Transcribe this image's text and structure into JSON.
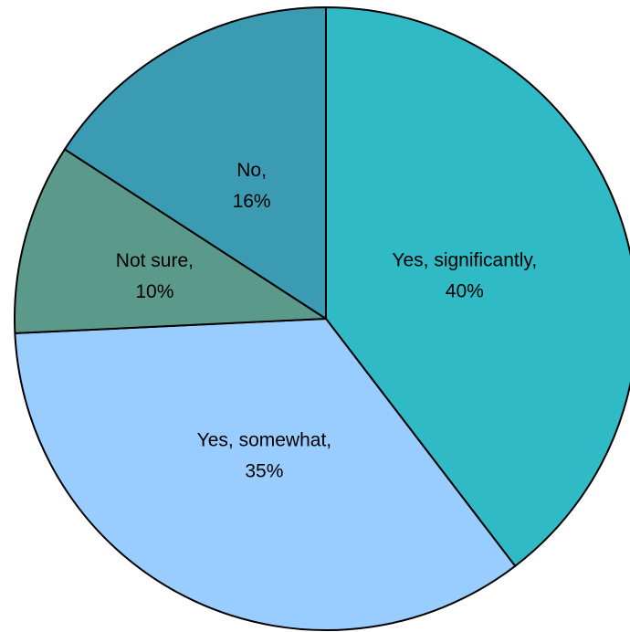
{
  "chart_data": {
    "type": "pie",
    "title": "",
    "slices": [
      {
        "label": "Yes, significantly",
        "value": 40,
        "value_label": "40%",
        "color": "#2fbac5"
      },
      {
        "label": "Yes, somewhat",
        "value": 35,
        "value_label": "35%",
        "color": "#99ccff"
      },
      {
        "label": "Not sure",
        "value": 10,
        "value_label": "10%",
        "color": "#5b9a8b"
      },
      {
        "label": "No",
        "value": 16,
        "value_label": "16%",
        "color": "#3b9bb3"
      }
    ],
    "start_angle_deg": 0,
    "direction": "clockwise",
    "legend": "none",
    "labels": "inside"
  }
}
